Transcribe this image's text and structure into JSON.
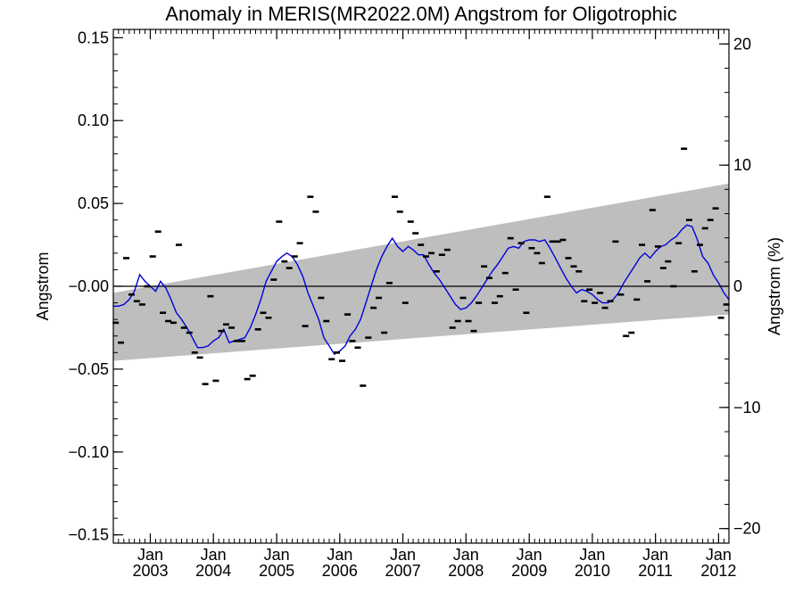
{
  "chart_data": {
    "type": "scatter",
    "title": "Anomaly in MERIS(MR2022.0M) Angstrom for Oligotrophic",
    "xlabel": "",
    "ylabel": "Angstrom",
    "y2label": "Angstrom (%)",
    "xlim": [
      "2002-06-01",
      "2012-03-01"
    ],
    "ylim": [
      -0.155,
      0.155
    ],
    "y2lim": [
      -21.2,
      21.2
    ],
    "yticks": [
      -0.15,
      -0.1,
      -0.05,
      0.0,
      0.05,
      0.1,
      0.15
    ],
    "ytick_labels": [
      "−0.15",
      "−0.10",
      "−0.05",
      "−0.00",
      "0.05",
      "0.10",
      "0.15"
    ],
    "y2ticks": [
      -20,
      -10,
      0,
      10,
      20
    ],
    "y2tick_labels": [
      "−20",
      "−10",
      "0",
      "10",
      "20"
    ],
    "xticks": [
      {
        "date": "2003-01-01",
        "line1": "Jan",
        "line2": "2003"
      },
      {
        "date": "2004-01-01",
        "line1": "Jan",
        "line2": "2004"
      },
      {
        "date": "2005-01-01",
        "line1": "Jan",
        "line2": "2005"
      },
      {
        "date": "2006-01-01",
        "line1": "Jan",
        "line2": "2006"
      },
      {
        "date": "2007-01-01",
        "line1": "Jan",
        "line2": "2007"
      },
      {
        "date": "2008-01-01",
        "line1": "Jan",
        "line2": "2008"
      },
      {
        "date": "2009-01-01",
        "line1": "Jan",
        "line2": "2009"
      },
      {
        "date": "2010-01-01",
        "line1": "Jan",
        "line2": "2010"
      },
      {
        "date": "2011-01-01",
        "line1": "Jan",
        "line2": "2011"
      },
      {
        "date": "2012-01-01",
        "line1": "Jan",
        "line2": "2012"
      }
    ],
    "zero_line": 0,
    "band": {
      "x": [
        "2002-06-01",
        "2012-03-01"
      ],
      "lower": [
        -0.045,
        -0.017
      ],
      "upper": [
        -0.004,
        0.062
      ],
      "color": "#bebebe"
    },
    "series": [
      {
        "kind": "scatter",
        "marker": "dash",
        "color": "#000000",
        "x": [
          "2002-06-15",
          "2002-07-15",
          "2002-08-15",
          "2002-09-15",
          "2002-10-15",
          "2002-11-15",
          "2002-12-15",
          "2003-01-15",
          "2003-02-15",
          "2003-03-15",
          "2003-04-15",
          "2003-05-15",
          "2003-06-15",
          "2003-07-15",
          "2003-08-15",
          "2003-09-15",
          "2003-10-15",
          "2003-11-15",
          "2003-12-15",
          "2004-01-15",
          "2004-02-15",
          "2004-03-15",
          "2004-04-15",
          "2004-05-15",
          "2004-06-15",
          "2004-07-15",
          "2004-08-15",
          "2004-09-15",
          "2004-10-15",
          "2004-11-15",
          "2004-12-15",
          "2005-01-15",
          "2005-02-15",
          "2005-03-15",
          "2005-04-15",
          "2005-05-15",
          "2005-06-15",
          "2005-07-15",
          "2005-08-15",
          "2005-09-15",
          "2005-10-15",
          "2005-11-15",
          "2005-12-15",
          "2006-01-15",
          "2006-02-15",
          "2006-03-15",
          "2006-04-15",
          "2006-05-15",
          "2006-06-15",
          "2006-07-15",
          "2006-08-15",
          "2006-09-15",
          "2006-10-15",
          "2006-11-15",
          "2006-12-15",
          "2007-01-15",
          "2007-02-15",
          "2007-03-15",
          "2007-04-15",
          "2007-05-15",
          "2007-06-15",
          "2007-07-15",
          "2007-08-15",
          "2007-09-15",
          "2007-10-15",
          "2007-11-15",
          "2007-12-15",
          "2008-01-15",
          "2008-02-15",
          "2008-03-15",
          "2008-04-15",
          "2008-05-15",
          "2008-06-15",
          "2008-07-15",
          "2008-08-15",
          "2008-09-15",
          "2008-10-15",
          "2008-11-15",
          "2008-12-15",
          "2009-01-15",
          "2009-02-15",
          "2009-03-15",
          "2009-04-15",
          "2009-05-15",
          "2009-06-15",
          "2009-07-15",
          "2009-08-15",
          "2009-09-15",
          "2009-10-15",
          "2009-11-15",
          "2009-12-15",
          "2010-01-15",
          "2010-02-15",
          "2010-03-15",
          "2010-04-15",
          "2010-05-15",
          "2010-06-15",
          "2010-07-15",
          "2010-08-15",
          "2010-09-15",
          "2010-10-15",
          "2010-11-15",
          "2010-12-15",
          "2011-01-15",
          "2011-02-15",
          "2011-03-15",
          "2011-04-15",
          "2011-05-15",
          "2011-06-15",
          "2011-07-15",
          "2011-08-15",
          "2011-09-15",
          "2011-10-15",
          "2011-11-15",
          "2011-12-15",
          "2012-01-15",
          "2012-02-15"
        ],
        "y": [
          -0.022,
          -0.034,
          0.017,
          -0.005,
          -0.009,
          -0.011,
          0.0,
          0.018,
          0.033,
          -0.016,
          -0.021,
          -0.022,
          0.025,
          -0.025,
          -0.028,
          -0.04,
          -0.043,
          -0.059,
          -0.006,
          -0.057,
          -0.027,
          -0.023,
          -0.025,
          -0.033,
          -0.033,
          -0.056,
          -0.054,
          -0.026,
          -0.016,
          -0.019,
          0.004,
          0.039,
          0.015,
          0.011,
          0.018,
          0.026,
          -0.024,
          0.054,
          0.045,
          -0.007,
          -0.021,
          -0.044,
          -0.04,
          -0.045,
          -0.017,
          -0.033,
          -0.037,
          -0.06,
          -0.031,
          -0.013,
          -0.007,
          -0.028,
          0.002,
          0.054,
          0.045,
          -0.01,
          0.039,
          0.032,
          0.025,
          0.018,
          0.02,
          0.009,
          0.019,
          0.022,
          -0.025,
          -0.021,
          -0.007,
          -0.021,
          -0.027,
          -0.01,
          0.012,
          0.005,
          -0.01,
          -0.006,
          0.008,
          0.029,
          -0.002,
          0.026,
          -0.016,
          0.023,
          0.02,
          0.014,
          0.054,
          0.027,
          0.027,
          0.028,
          0.017,
          0.012,
          0.009,
          -0.009,
          -0.002,
          -0.01,
          -0.004,
          -0.013,
          -0.009,
          0.027,
          -0.005,
          -0.03,
          -0.028,
          -0.008,
          0.025,
          0.003,
          0.046,
          0.024,
          0.011,
          0.015,
          0.0,
          0.026,
          0.083,
          0.04,
          0.009,
          0.025,
          0.035,
          0.04,
          0.047,
          -0.019,
          -0.011
        ]
      },
      {
        "kind": "line",
        "color": "#0000dd",
        "x": [
          "2002-06-01",
          "2002-07-01",
          "2002-08-01",
          "2002-09-01",
          "2002-10-01",
          "2002-11-01",
          "2002-12-01",
          "2003-01-01",
          "2003-02-01",
          "2003-03-01",
          "2003-04-01",
          "2003-05-01",
          "2003-06-01",
          "2003-07-01",
          "2003-08-01",
          "2003-09-01",
          "2003-10-01",
          "2003-11-01",
          "2003-12-01",
          "2004-01-01",
          "2004-02-01",
          "2004-03-01",
          "2004-04-01",
          "2004-05-01",
          "2004-06-01",
          "2004-07-01",
          "2004-08-01",
          "2004-09-01",
          "2004-10-01",
          "2004-11-01",
          "2004-12-01",
          "2005-01-01",
          "2005-02-01",
          "2005-03-01",
          "2005-04-01",
          "2005-05-01",
          "2005-06-01",
          "2005-07-01",
          "2005-08-01",
          "2005-09-01",
          "2005-10-01",
          "2005-11-01",
          "2005-12-01",
          "2006-01-01",
          "2006-02-01",
          "2006-03-01",
          "2006-04-01",
          "2006-05-01",
          "2006-06-01",
          "2006-07-01",
          "2006-08-01",
          "2006-09-01",
          "2006-10-01",
          "2006-11-01",
          "2006-12-01",
          "2007-01-01",
          "2007-02-01",
          "2007-03-01",
          "2007-04-01",
          "2007-05-01",
          "2007-06-01",
          "2007-07-01",
          "2007-08-01",
          "2007-09-01",
          "2007-10-01",
          "2007-11-01",
          "2007-12-01",
          "2008-01-01",
          "2008-02-01",
          "2008-03-01",
          "2008-04-01",
          "2008-05-01",
          "2008-06-01",
          "2008-07-01",
          "2008-08-01",
          "2008-09-01",
          "2008-10-01",
          "2008-11-01",
          "2008-12-01",
          "2009-01-01",
          "2009-02-01",
          "2009-03-01",
          "2009-04-01",
          "2009-05-01",
          "2009-06-01",
          "2009-07-01",
          "2009-08-01",
          "2009-09-01",
          "2009-10-01",
          "2009-11-01",
          "2009-12-01",
          "2010-01-01",
          "2010-02-01",
          "2010-03-01",
          "2010-04-01",
          "2010-05-01",
          "2010-06-01",
          "2010-07-01",
          "2010-08-01",
          "2010-09-01",
          "2010-10-01",
          "2010-11-01",
          "2010-12-01",
          "2011-01-01",
          "2011-02-01",
          "2011-03-01",
          "2011-04-01",
          "2011-05-01",
          "2011-06-01",
          "2011-07-01",
          "2011-08-01",
          "2011-09-01",
          "2011-10-01",
          "2011-11-01",
          "2011-12-01",
          "2012-01-01",
          "2012-02-01",
          "2012-03-01"
        ],
        "y": [
          -0.012,
          -0.012,
          -0.011,
          -0.008,
          -0.003,
          0.007,
          0.003,
          0.0,
          -0.003,
          0.003,
          -0.001,
          -0.008,
          -0.016,
          -0.02,
          -0.025,
          -0.031,
          -0.037,
          -0.037,
          -0.036,
          -0.033,
          -0.031,
          -0.026,
          -0.034,
          -0.033,
          -0.032,
          -0.031,
          -0.025,
          -0.017,
          -0.008,
          0.003,
          0.009,
          0.015,
          0.018,
          0.02,
          0.018,
          0.013,
          0.006,
          -0.004,
          -0.012,
          -0.02,
          -0.031,
          -0.036,
          -0.041,
          -0.039,
          -0.036,
          -0.03,
          -0.026,
          -0.02,
          -0.01,
          0.0,
          0.01,
          0.018,
          0.024,
          0.029,
          0.024,
          0.021,
          0.024,
          0.022,
          0.019,
          0.019,
          0.013,
          0.008,
          0.004,
          -0.001,
          -0.006,
          -0.011,
          -0.014,
          -0.013,
          -0.01,
          -0.006,
          -0.001,
          0.004,
          0.009,
          0.013,
          0.018,
          0.023,
          0.024,
          0.023,
          0.027,
          0.028,
          0.028,
          0.027,
          0.028,
          0.023,
          0.017,
          0.011,
          0.005,
          0.0,
          -0.004,
          -0.002,
          -0.003,
          -0.005,
          -0.008,
          -0.01,
          -0.01,
          -0.008,
          -0.004,
          0.002,
          0.007,
          0.012,
          0.017,
          0.02,
          0.017,
          0.021,
          0.024,
          0.025,
          0.028,
          0.03,
          0.034,
          0.037,
          0.036,
          0.028,
          0.018,
          0.014,
          0.007,
          0.002,
          -0.004,
          -0.008
        ]
      }
    ]
  }
}
